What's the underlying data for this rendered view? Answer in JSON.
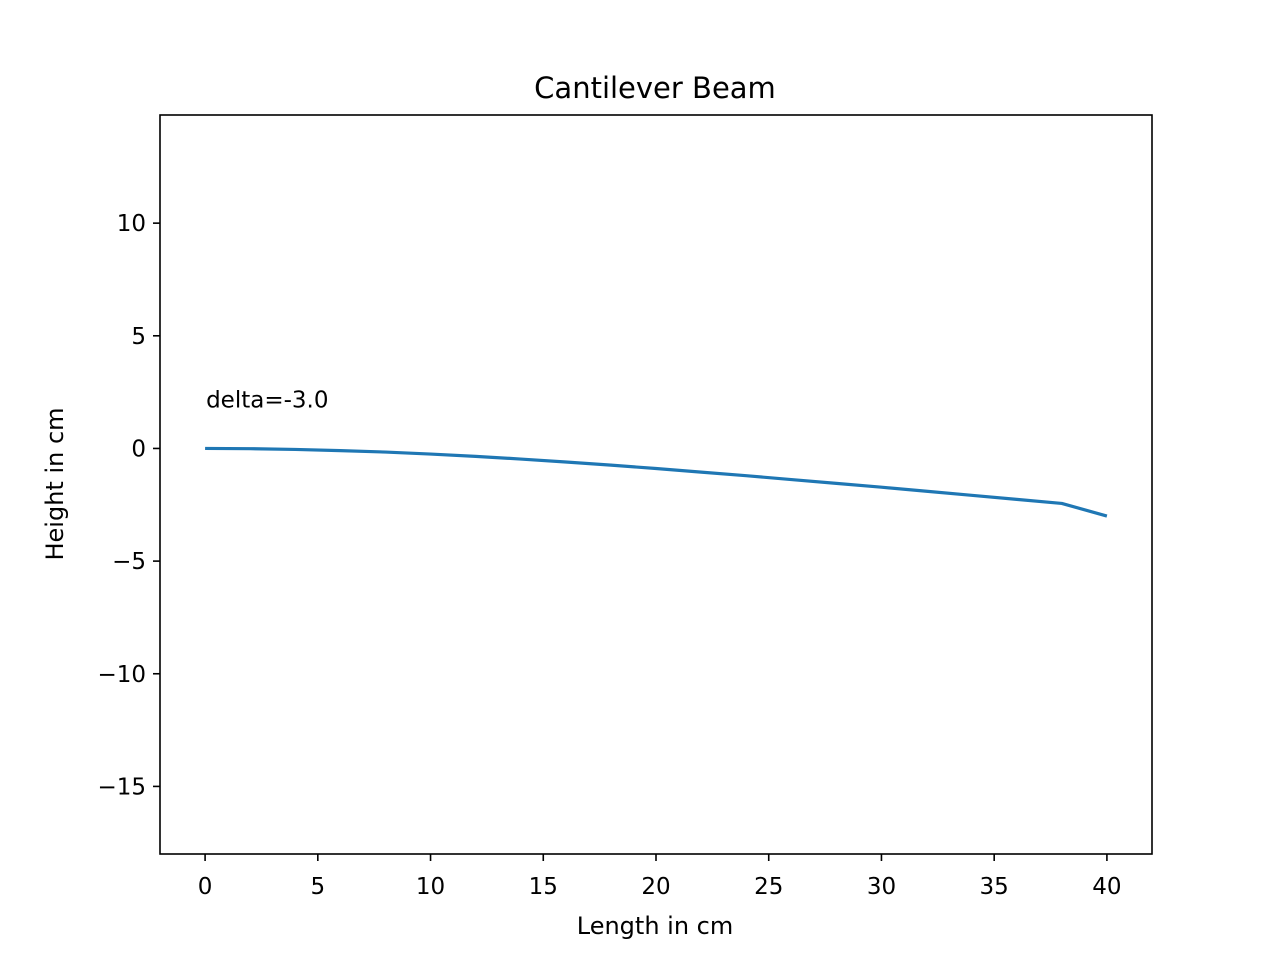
{
  "chart_data": {
    "type": "line",
    "title": "Cantilever Beam",
    "xlabel": "Length in cm",
    "ylabel": "Height in cm",
    "xlim": [
      -2,
      42
    ],
    "ylim": [
      -18,
      14.8
    ],
    "x_ticks": [
      0,
      5,
      10,
      15,
      20,
      25,
      30,
      35,
      40
    ],
    "y_ticks": [
      10,
      5,
      0,
      -5,
      -10,
      -15
    ],
    "x_tick_labels": [
      "0",
      "5",
      "10",
      "15",
      "20",
      "25",
      "30",
      "35",
      "40"
    ],
    "y_tick_labels": [
      "10",
      "5",
      "0",
      "−5",
      "−10",
      "−15"
    ],
    "grid": false,
    "series": [
      {
        "color": "#1f77b4",
        "x": [
          0,
          2,
          4,
          6,
          8,
          10,
          12,
          14,
          16,
          18,
          20,
          22,
          24,
          26,
          28,
          30,
          32,
          34,
          36,
          38,
          40
        ],
        "y": [
          0,
          -0.011,
          -0.044,
          -0.095,
          -0.16,
          -0.25,
          -0.35,
          -0.47,
          -0.6,
          -0.74,
          -0.89,
          -1.05,
          -1.21,
          -1.38,
          -1.55,
          -1.72,
          -1.9,
          -2.08,
          -2.26,
          -2.44,
          -3.0
        ]
      }
    ],
    "annotations": [
      {
        "text": "delta=-3.0",
        "x": 0,
        "y": 2.0
      }
    ]
  }
}
